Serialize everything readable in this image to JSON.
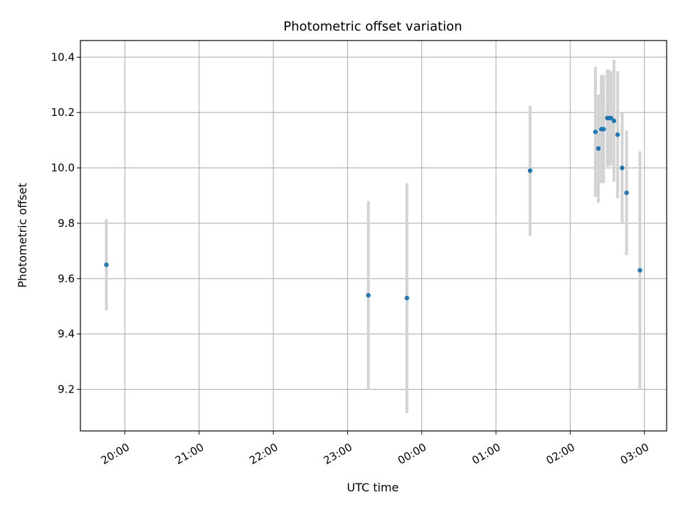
{
  "chart_data": {
    "type": "scatter",
    "title": "Photometric offset variation",
    "xlabel": "UTC time",
    "ylabel": "Photometric offset",
    "x_tick_labels": [
      "20:00",
      "21:00",
      "22:00",
      "23:00",
      "00:00",
      "01:00",
      "02:00",
      "03:00"
    ],
    "x_tick_hours": [
      20,
      21,
      22,
      23,
      24,
      25,
      26,
      27
    ],
    "xlim_hours": [
      19.4,
      27.3
    ],
    "ylim": [
      9.05,
      10.46
    ],
    "y_ticks": [
      9.2,
      9.4,
      9.6,
      9.8,
      10.0,
      10.2,
      10.4
    ],
    "y_tick_labels": [
      "9.2",
      "9.4",
      "9.6",
      "9.8",
      "10.0",
      "10.2",
      "10.4"
    ],
    "grid": true,
    "points": [
      {
        "time": "19:45",
        "x": 19.75,
        "y": 9.65,
        "err": 0.165
      },
      {
        "time": "23:17",
        "x": 23.28,
        "y": 9.54,
        "err": 0.34
      },
      {
        "time": "23:49",
        "x": 23.8,
        "y": 9.53,
        "err": 0.415
      },
      {
        "time": "01:28",
        "x": 25.46,
        "y": 9.99,
        "err": 0.235
      },
      {
        "time": "02:21",
        "x": 26.34,
        "y": 10.13,
        "err": 0.235
      },
      {
        "time": "02:23",
        "x": 26.38,
        "y": 10.07,
        "err": 0.195
      },
      {
        "time": "02:25",
        "x": 26.42,
        "y": 10.14,
        "err": 0.195
      },
      {
        "time": "02:27",
        "x": 26.45,
        "y": 10.14,
        "err": 0.195
      },
      {
        "time": "02:30",
        "x": 26.5,
        "y": 10.18,
        "err": 0.175
      },
      {
        "time": "02:31",
        "x": 26.52,
        "y": 10.18,
        "err": 0.175
      },
      {
        "time": "02:33",
        "x": 26.55,
        "y": 10.18,
        "err": 0.17
      },
      {
        "time": "02:35",
        "x": 26.59,
        "y": 10.17,
        "err": 0.22
      },
      {
        "time": "02:38",
        "x": 26.64,
        "y": 10.12,
        "err": 0.23
      },
      {
        "time": "02:42",
        "x": 26.7,
        "y": 10.0,
        "err": 0.2
      },
      {
        "time": "02:45",
        "x": 26.76,
        "y": 9.91,
        "err": 0.225
      },
      {
        "time": "02:56",
        "x": 26.94,
        "y": 9.63,
        "err": 0.43
      }
    ],
    "colors": {
      "marker": "#1f77b4",
      "errorbar": "#d3d3d3",
      "grid": "#b0b0b0",
      "axes": "#000000"
    }
  }
}
